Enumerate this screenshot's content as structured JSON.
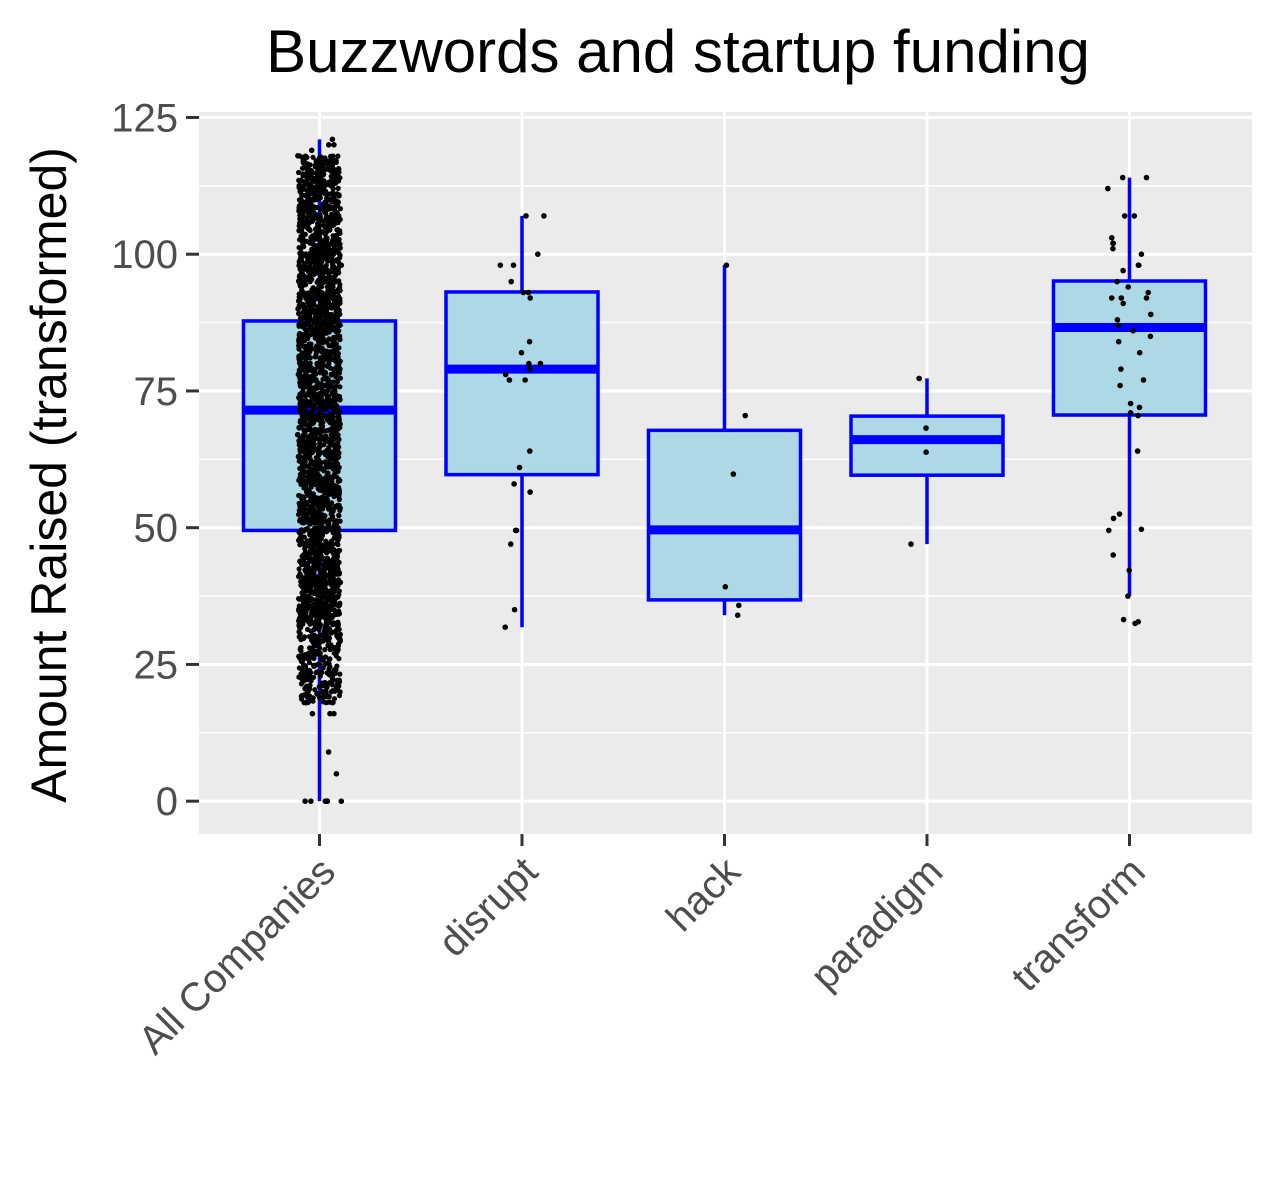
{
  "chart_data": {
    "type": "box",
    "title": "Buzzwords and startup funding",
    "xlabel": "",
    "ylabel": "Amount Raised (transformed)",
    "ylim": [
      -6,
      126
    ],
    "yticks": [
      0,
      25,
      50,
      75,
      100,
      125
    ],
    "categories": [
      "All Companies",
      "disrupt",
      "hack",
      "paradigm",
      "transform"
    ],
    "grid": true,
    "legend": "none",
    "colors": {
      "panel_bg": "#ebebeb",
      "grid": "#ffffff",
      "box_fill": "#add8e6",
      "box_line": "#0000ff",
      "points": "#000000",
      "axis_text": "#4d4d4d",
      "title": "#000000"
    },
    "boxes": [
      {
        "category": "All Companies",
        "q1": 49.5,
        "median": 71.5,
        "q3": 87.8,
        "whisker_low": 0,
        "whisker_high": 121
      },
      {
        "category": "disrupt",
        "q1": 59.7,
        "median": 79.0,
        "q3": 93.1,
        "whisker_low": 31.8,
        "whisker_high": 107
      },
      {
        "category": "hack",
        "q1": 36.8,
        "median": 49.6,
        "q3": 67.8,
        "whisker_low": 34.0,
        "whisker_high": 98
      },
      {
        "category": "paradigm",
        "q1": 59.6,
        "median": 66.1,
        "q3": 70.4,
        "whisker_low": 47,
        "whisker_high": 77.3
      },
      {
        "category": "transform",
        "q1": 70.6,
        "median": 86.6,
        "q3": 95.1,
        "whisker_low": 37.5,
        "whisker_high": 114
      }
    ],
    "points": [
      {
        "category": "All Companies",
        "y": [
          0,
          0,
          0,
          0,
          0,
          0,
          0,
          5,
          9,
          16,
          16,
          16,
          18,
          18,
          19,
          20,
          21,
          22,
          24,
          24,
          24,
          25,
          26,
          27,
          28,
          29,
          30,
          31,
          32,
          33,
          34,
          35,
          36,
          37,
          38,
          39,
          40,
          41,
          42,
          43,
          44,
          45,
          46,
          47,
          48,
          49,
          50,
          51,
          52,
          53,
          54,
          55,
          56,
          57,
          58,
          59,
          60,
          61,
          62,
          63,
          64,
          65,
          66,
          67,
          68,
          69,
          70,
          71,
          72,
          73,
          74,
          75,
          76,
          77,
          78,
          79,
          80,
          81,
          82,
          83,
          84,
          85,
          86,
          87,
          88,
          89,
          90,
          91,
          92,
          93,
          94,
          95,
          96,
          97,
          98,
          99,
          100,
          101,
          102,
          103,
          104,
          105,
          106,
          107,
          108,
          109,
          110,
          111,
          112,
          113,
          114,
          115,
          116,
          117,
          118,
          119,
          120,
          120,
          121
        ]
      },
      {
        "category": "disrupt",
        "y": [
          107,
          107,
          100,
          98,
          98,
          95,
          93,
          93,
          92,
          84,
          82,
          80,
          80,
          79,
          78,
          77,
          77,
          64,
          61,
          58,
          56.5,
          49.5,
          49.5,
          47,
          35,
          31.8
        ]
      },
      {
        "category": "hack",
        "y": [
          98,
          70.5,
          59.8,
          39.2,
          35.8,
          34
        ]
      },
      {
        "category": "paradigm",
        "y": [
          77.3,
          68.2,
          63.8,
          47
        ]
      },
      {
        "category": "transform",
        "y": [
          114,
          114,
          112,
          107,
          107,
          103,
          102,
          102,
          101,
          100,
          98,
          98,
          97,
          95,
          94,
          93,
          92,
          92,
          92,
          91,
          89,
          88,
          87,
          86,
          85,
          84,
          82,
          79,
          77,
          76,
          72.7,
          72,
          71,
          70.5,
          64,
          52.5,
          51.7,
          49.7,
          49.5,
          45,
          42.2,
          37.5,
          33.2,
          32.8,
          32.5
        ]
      }
    ]
  }
}
